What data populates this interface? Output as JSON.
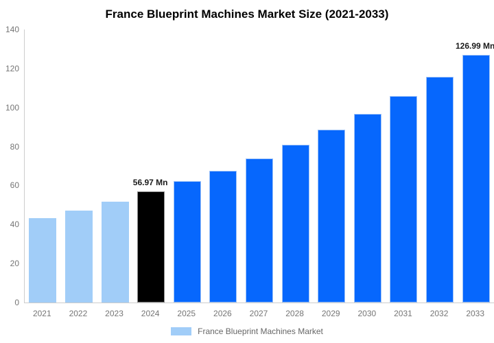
{
  "title": "France Blueprint Machines Market Size (2021-2033)",
  "chart_data": {
    "type": "bar",
    "title": "France Blueprint Machines Market Size (2021-2033)",
    "xlabel": "",
    "ylabel": "",
    "ylim": [
      0,
      140
    ],
    "y_tick_step": 20,
    "y_tick_labels": [
      "0",
      "20",
      "40",
      "60",
      "80",
      "100",
      "120",
      "140"
    ],
    "grid": false,
    "legend_position": "bottom",
    "legend_entries": [
      "France Blueprint Machines Market"
    ],
    "categories": [
      "2021",
      "2022",
      "2023",
      "2024",
      "2025",
      "2026",
      "2027",
      "2028",
      "2029",
      "2030",
      "2031",
      "2032",
      "2033"
    ],
    "values": [
      43.2,
      47.3,
      51.7,
      56.97,
      62.2,
      67.6,
      73.9,
      81.0,
      88.6,
      96.9,
      105.9,
      115.8,
      126.99
    ],
    "bar_fills": [
      "#a1cdf8",
      "#a1cdf8",
      "#a1cdf8",
      "#000000",
      "#0667fd",
      "#0667fd",
      "#0667fd",
      "#0667fd",
      "#0667fd",
      "#0667fd",
      "#0667fd",
      "#0667fd",
      "#0667fd"
    ],
    "bar_strokes": [
      "#a1cdf8",
      "#a1cdf8",
      "#a1cdf8",
      "#909090",
      "#9fc3f7",
      "#9fc3f7",
      "#9fc3f7",
      "#9fc3f7",
      "#9fc3f7",
      "#9fc3f7",
      "#9fc3f7",
      "#9fc3f7",
      "#9fc3f7"
    ],
    "annotations": [
      {
        "category": "2024",
        "text": "56.97 Mn"
      },
      {
        "category": "2033",
        "text": "126.99 Mn"
      }
    ]
  },
  "colors": {
    "background": "#ffffff",
    "axis_line": "#cccccc",
    "axis_text": "#757575",
    "title_text": "#000000",
    "annotation_text": "#1a1a1a",
    "legend_text": "#666666",
    "legend_swatch": "#a1cdf8",
    "historical_bar": "#a1cdf8",
    "highlight_bar": "#000000",
    "forecast_bar": "#0667fd"
  }
}
